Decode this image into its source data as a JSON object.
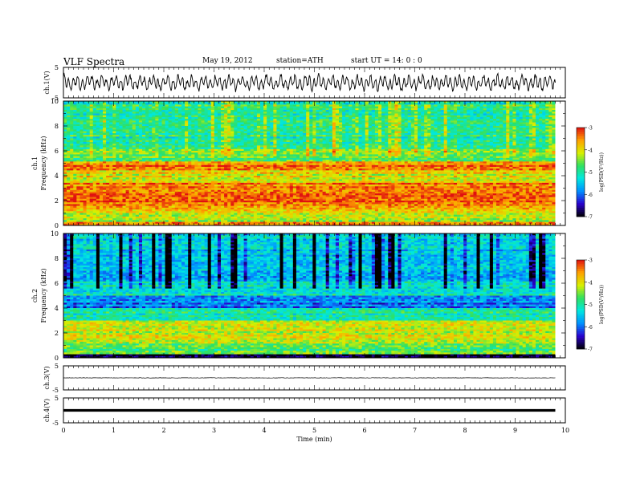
{
  "header": {
    "title": "VLF Spectra",
    "date": "May 19, 2012",
    "station": "station=ATH",
    "start": "start UT = 14: 0 : 0"
  },
  "colors": {
    "colormap": [
      "#000000",
      "#2a00d0",
      "#0090ff",
      "#00e8e0",
      "#30e060",
      "#d8f000",
      "#ffa000",
      "#e01010",
      "#ffffff"
    ]
  },
  "chart_data": [
    {
      "type": "line",
      "ylabel": "ch.1(V)",
      "ylim": [
        -5,
        5
      ],
      "yticks": [
        5,
        -5
      ],
      "xlim": [
        0,
        10
      ],
      "description_series": "waveform amplitude between about -3 and 3 V over 0-9.8 min"
    },
    {
      "type": "heatmap",
      "ylabel": "ch.1 Frequency (kHz)",
      "ylim": [
        0,
        10
      ],
      "yticks": [
        0,
        2,
        4,
        6,
        8,
        10
      ],
      "xlim": [
        0,
        10
      ],
      "data_extent_min": 9.8,
      "colorbar": {
        "label": "log(PSD(V²/Hz))",
        "range": [
          -7,
          -3
        ],
        "ticks": [
          -3,
          -4,
          -5,
          -6,
          -7
        ]
      },
      "bands": [
        {
          "from": 0.0,
          "to": 0.3,
          "level": -3.6
        },
        {
          "from": 0.3,
          "to": 1.0,
          "level": -4.2
        },
        {
          "from": 1.0,
          "to": 1.6,
          "level": -3.9
        },
        {
          "from": 1.6,
          "to": 3.4,
          "level": -3.4
        },
        {
          "from": 3.4,
          "to": 4.4,
          "level": -4.0
        },
        {
          "from": 4.4,
          "to": 5.2,
          "level": -3.5
        },
        {
          "from": 5.2,
          "to": 6.2,
          "level": -4.6
        },
        {
          "from": 6.2,
          "to": 10.0,
          "level": -5.0
        }
      ]
    },
    {
      "type": "heatmap",
      "ylabel": "ch.2 Frequency (kHz)",
      "ylim": [
        0,
        10
      ],
      "yticks": [
        0,
        2,
        4,
        6,
        8,
        10
      ],
      "xlim": [
        0,
        10
      ],
      "data_extent_min": 9.8,
      "colorbar": {
        "label": "log(PSD(V²/Hz))",
        "range": [
          -7,
          -3
        ],
        "ticks": [
          -3,
          -4,
          -5,
          -6,
          -7
        ]
      },
      "bands": [
        {
          "from": 0.0,
          "to": 0.3,
          "level": -6.8
        },
        {
          "from": 0.3,
          "to": 1.2,
          "level": -4.6
        },
        {
          "from": 1.2,
          "to": 3.0,
          "level": -4.2
        },
        {
          "from": 3.0,
          "to": 4.0,
          "level": -5.0
        },
        {
          "from": 4.0,
          "to": 5.0,
          "level": -5.9
        },
        {
          "from": 5.0,
          "to": 6.2,
          "level": -5.2
        },
        {
          "from": 6.2,
          "to": 7.0,
          "level": -5.8
        },
        {
          "from": 7.0,
          "to": 10.0,
          "level": -5.4
        }
      ]
    },
    {
      "type": "line",
      "ylabel": "ch.3(V)",
      "ylim": [
        -5,
        5
      ],
      "yticks": [
        5,
        -5
      ],
      "xlim": [
        0,
        10
      ],
      "constant_value": 0
    },
    {
      "type": "line",
      "ylabel": "ch.4(V)",
      "ylim": [
        -5,
        5
      ],
      "yticks": [
        5,
        -5
      ],
      "xlim": [
        0,
        10
      ],
      "constant_value": 0,
      "xlabel": "Time (min)",
      "xticks": [
        0,
        1,
        2,
        3,
        4,
        5,
        6,
        7,
        8,
        9,
        10
      ]
    }
  ]
}
